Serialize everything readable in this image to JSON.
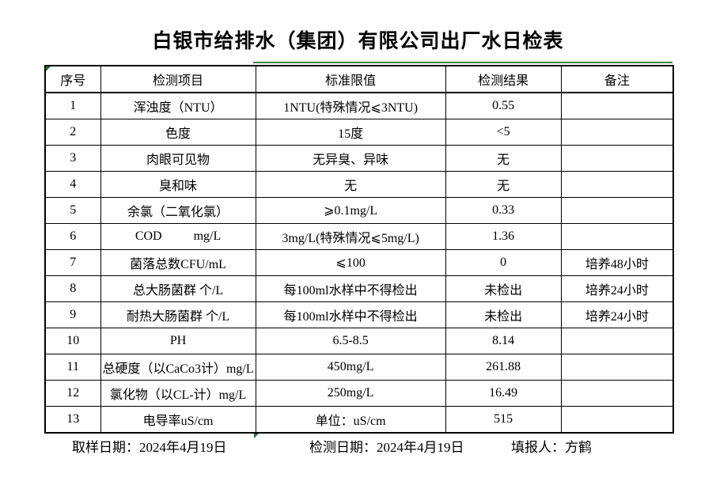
{
  "title": "白银市给排水（集团）有限公司出厂水日检表",
  "table": {
    "headers": [
      "序号",
      "检测项目",
      "标准限值",
      "检测结果",
      "备注"
    ],
    "rows": [
      {
        "no": "1",
        "item": "浑浊度（NTU）",
        "limit": "1NTU(特殊情况⩽3NTU)",
        "result": "0.55",
        "note": ""
      },
      {
        "no": "2",
        "item": "色度",
        "limit": "15度",
        "result": "<5",
        "note": ""
      },
      {
        "no": "3",
        "item": "肉眼可见物",
        "limit": "无异臭、异味",
        "result": "无",
        "note": ""
      },
      {
        "no": "4",
        "item": "臭和味",
        "limit": "无",
        "result": "无",
        "note": ""
      },
      {
        "no": "5",
        "item": "余氯（二氧化氯）",
        "limit": "⩾0.1mg/L",
        "result": "0.33",
        "note": ""
      },
      {
        "no": "6",
        "item": "COD          mg/L",
        "limit": "3mg/L(特殊情况⩽5mg/L)",
        "result": "1.36",
        "note": ""
      },
      {
        "no": "7",
        "item": "菌落总数CFU/mL",
        "limit": "⩽100",
        "result": "0",
        "note": "培养48小时"
      },
      {
        "no": "8",
        "item": "总大肠菌群 个/L",
        "limit": "每100ml水样中不得检出",
        "result": "未检出",
        "note": "培养24小时"
      },
      {
        "no": "9",
        "item": "耐热大肠菌群 个/L",
        "limit": "每100ml水样中不得检出",
        "result": "未检出",
        "note": "培养24小时"
      },
      {
        "no": "10",
        "item": "PH",
        "limit": "6.5-8.5",
        "result": "8.14",
        "note": ""
      },
      {
        "no": "11",
        "item": "总硬度（以CaCo3计）mg/L",
        "limit": "450mg/L",
        "result": "261.88",
        "note": ""
      },
      {
        "no": "12",
        "item": "氯化物（以CL-计）mg/L",
        "limit": "250mg/L",
        "result": "16.49",
        "note": ""
      },
      {
        "no": "13",
        "item": "电导率uS/cm",
        "limit": "单位：uS/cm",
        "result": "515",
        "note": ""
      }
    ]
  },
  "footer": {
    "sampling_label": "取样日期：",
    "sampling_value": "2024年4月19日",
    "testing_label": "检测日期：",
    "testing_value": "2024年4月19日",
    "reporter_label": "填报人：",
    "reporter_value": "方鹤"
  },
  "colors": {
    "marker_green": "#1f7a1f",
    "border": "#000000",
    "background": "#ffffff",
    "text": "#000000"
  }
}
